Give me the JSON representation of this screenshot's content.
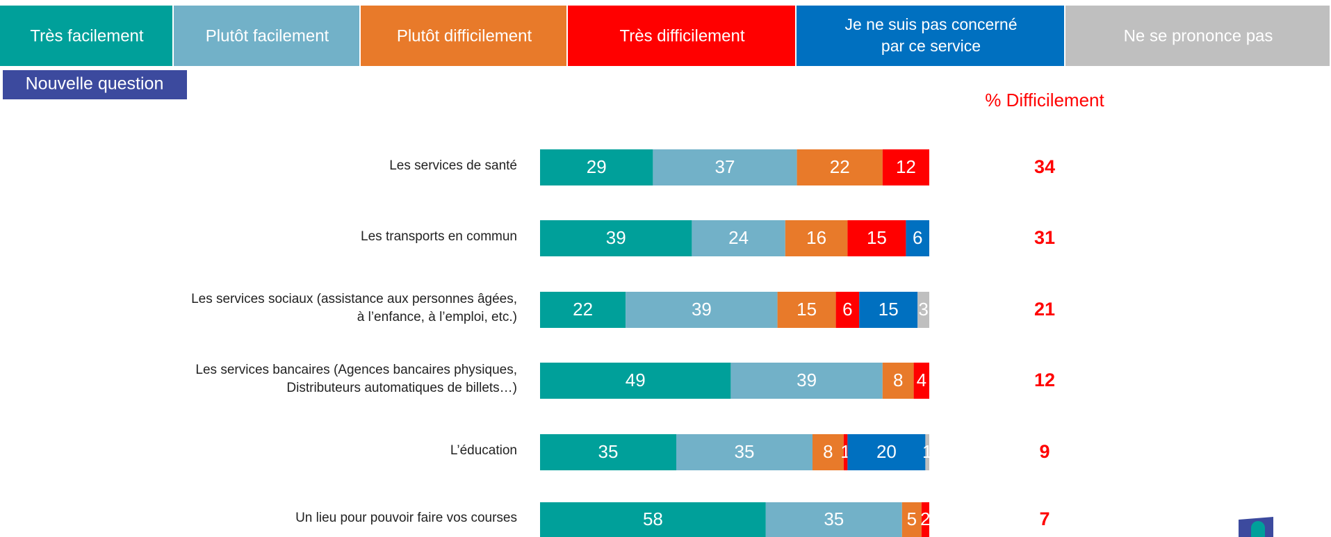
{
  "chart_data": {
    "type": "stacked-bar-horizontal",
    "header": "Nouvelle question",
    "categories": [
      [
        "Les services de santé"
      ],
      [
        "Les transports en commun"
      ],
      [
        "Les services sociaux (assistance aux personnes âgées,",
        "à l’enfance, à l’emploi, etc.)"
      ],
      [
        "Les services bancaires (Agences bancaires physiques,",
        "Distributeurs automatiques de billets…)"
      ],
      [
        "L’éducation"
      ],
      [
        "Un lieu pour pouvoir faire vos courses"
      ]
    ],
    "xlim": [
      0,
      100
    ],
    "series": [
      {
        "name": "Très facilement",
        "color": "#00a09a",
        "values": [
          29,
          39,
          22,
          49,
          35,
          58
        ]
      },
      {
        "name": "Plutôt facilement",
        "color": "#72b1c8",
        "values": [
          37,
          24,
          39,
          39,
          35,
          35
        ]
      },
      {
        "name": "Plutôt difficilement",
        "color": "#e87a2a",
        "values": [
          22,
          16,
          15,
          8,
          8,
          5
        ]
      },
      {
        "name": "Très difficilement",
        "color": "#ff0000",
        "values": [
          12,
          15,
          6,
          4,
          1,
          2
        ]
      },
      {
        "name": "Je ne suis pas concerné par ce service",
        "color": "#0070c0",
        "values": [
          null,
          6,
          15,
          null,
          20,
          null
        ]
      },
      {
        "name": "Ne se prononce pas",
        "color": "#bfbfbf",
        "values": [
          null,
          null,
          3,
          null,
          1,
          null
        ]
      }
    ],
    "totals": {
      "label": "% Difficilement",
      "color": "#ff0000",
      "values": [
        34,
        31,
        21,
        12,
        9,
        7
      ]
    }
  }
}
